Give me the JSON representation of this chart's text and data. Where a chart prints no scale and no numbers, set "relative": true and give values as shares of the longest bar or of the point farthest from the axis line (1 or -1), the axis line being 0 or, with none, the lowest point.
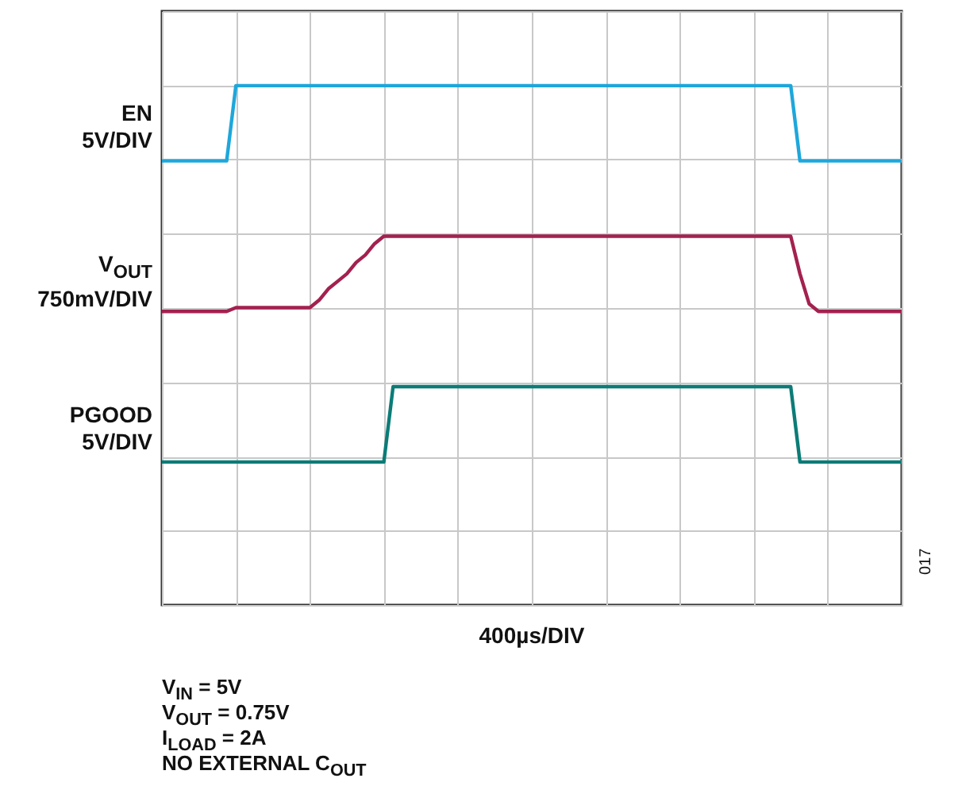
{
  "chart_data": {
    "type": "line",
    "relative": true,
    "grid": true,
    "categories": [
      null,
      null,
      null,
      null,
      null,
      null,
      null,
      null,
      null,
      null,
      null,
      null,
      null,
      null,
      null,
      null,
      null,
      null,
      null,
      null,
      null,
      null,
      null,
      null,
      null,
      null,
      null,
      null,
      null,
      null,
      null,
      null,
      null,
      null,
      null,
      null,
      null,
      null,
      null,
      null,
      null,
      null,
      null,
      null,
      null,
      null,
      null,
      null,
      null,
      null,
      null,
      null,
      null,
      null,
      null,
      null,
      null,
      null,
      null,
      null,
      null,
      null,
      null,
      null,
      null,
      null,
      null,
      null,
      null,
      null,
      null,
      null,
      null,
      null,
      null,
      null,
      null,
      null,
      null,
      null,
      null
    ],
    "series": [
      {
        "name": "EN",
        "color": "#1ea7db",
        "values": [
          0.8,
          0.8,
          0.8,
          0.8,
          0.8,
          0.8,
          0.8,
          0.8,
          1,
          1,
          1,
          1,
          1,
          1,
          1,
          1,
          1,
          1,
          1,
          1,
          1,
          1,
          1,
          1,
          1,
          1,
          1,
          1,
          1,
          1,
          1,
          1,
          1,
          1,
          1,
          1,
          1,
          1,
          1,
          1,
          1,
          1,
          1,
          1,
          1,
          1,
          1,
          1,
          1,
          1,
          1,
          1,
          1,
          1,
          1,
          1,
          1,
          1,
          1,
          1,
          1,
          1,
          1,
          1,
          1,
          1,
          1,
          1,
          1,
          0.8,
          0.8,
          0.8,
          0.8,
          0.8,
          0.8,
          0.8,
          0.8,
          0.8,
          0.8,
          0.8,
          0.8
        ]
      },
      {
        "name": "V$_{OUT}$",
        "color": "#a3214f",
        "values": [
          0.4,
          0.4,
          0.4,
          0.4,
          0.4,
          0.4,
          0.4,
          0.4,
          0.41,
          0.41,
          0.41,
          0.41,
          0.41,
          0.41,
          0.41,
          0.41,
          0.41,
          0.43,
          0.46,
          0.48,
          0.5,
          0.53,
          0.55,
          0.58,
          0.6,
          0.6,
          0.6,
          0.6,
          0.6,
          0.6,
          0.6,
          0.6,
          0.6,
          0.6,
          0.6,
          0.6,
          0.6,
          0.6,
          0.6,
          0.6,
          0.6,
          0.6,
          0.6,
          0.6,
          0.6,
          0.6,
          0.6,
          0.6,
          0.6,
          0.6,
          0.6,
          0.6,
          0.6,
          0.6,
          0.6,
          0.6,
          0.6,
          0.6,
          0.6,
          0.6,
          0.6,
          0.6,
          0.6,
          0.6,
          0.6,
          0.6,
          0.6,
          0.6,
          0.6,
          0.5,
          0.42,
          0.4,
          0.4,
          0.4,
          0.4,
          0.4,
          0.4,
          0.4,
          0.4,
          0.4,
          0.4
        ]
      },
      {
        "name": "PGOOD",
        "color": "#0c7c77",
        "values": [
          0,
          0,
          0,
          0,
          0,
          0,
          0,
          0,
          0,
          0,
          0,
          0,
          0,
          0,
          0,
          0,
          0,
          0,
          0,
          0,
          0,
          0,
          0,
          0,
          0,
          0.2,
          0.2,
          0.2,
          0.2,
          0.2,
          0.2,
          0.2,
          0.2,
          0.2,
          0.2,
          0.2,
          0.2,
          0.2,
          0.2,
          0.2,
          0.2,
          0.2,
          0.2,
          0.2,
          0.2,
          0.2,
          0.2,
          0.2,
          0.2,
          0.2,
          0.2,
          0.2,
          0.2,
          0.2,
          0.2,
          0.2,
          0.2,
          0.2,
          0.2,
          0.2,
          0.2,
          0.2,
          0.2,
          0.2,
          0.2,
          0.2,
          0.2,
          0.2,
          0.2,
          0,
          0,
          0,
          0,
          0,
          0,
          0,
          0,
          0,
          0,
          0,
          0
        ]
      }
    ],
    "annotations": [
      "5V/DIV",
      "750mV/DIV",
      "5V/DIV",
      "400µs/DIV",
      "V$_{IN}$ = 5V",
      "V$_{OUT}$ = 0.75V",
      "I$_{LOAD}$ = 2A",
      "NO EXTERNAL C$_{OUT}$",
      "017"
    ]
  }
}
